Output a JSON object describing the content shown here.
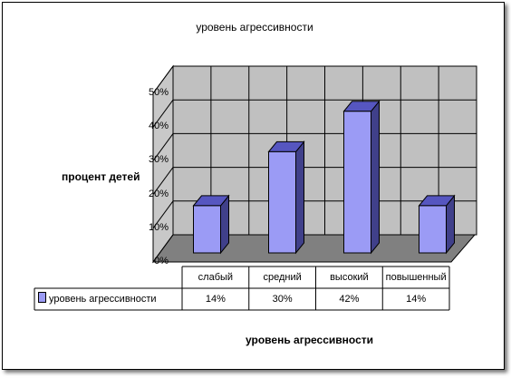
{
  "chart_data": {
    "type": "bar",
    "title": "уровень агрессивности",
    "xlabel": "уровень агрессивности",
    "ylabel": "процент детей",
    "categories": [
      "слабый",
      "средний",
      "высокий",
      "повышенный"
    ],
    "series": [
      {
        "name": "уровень агрессивности",
        "values": [
          14,
          30,
          42,
          14
        ],
        "labels": [
          "14%",
          "30%",
          "42%",
          "14%"
        ]
      }
    ],
    "ylim": [
      0,
      50
    ],
    "yticks": [
      "0%",
      "10%",
      "20%",
      "30%",
      "40%",
      "50%"
    ],
    "grid": true,
    "legend": "data-table",
    "colors": {
      "bar_front": "#9b9bf5",
      "bar_side": "#40408a",
      "bar_top": "#5656c0",
      "wall": "#c0c0c0",
      "floor": "#808080"
    }
  }
}
